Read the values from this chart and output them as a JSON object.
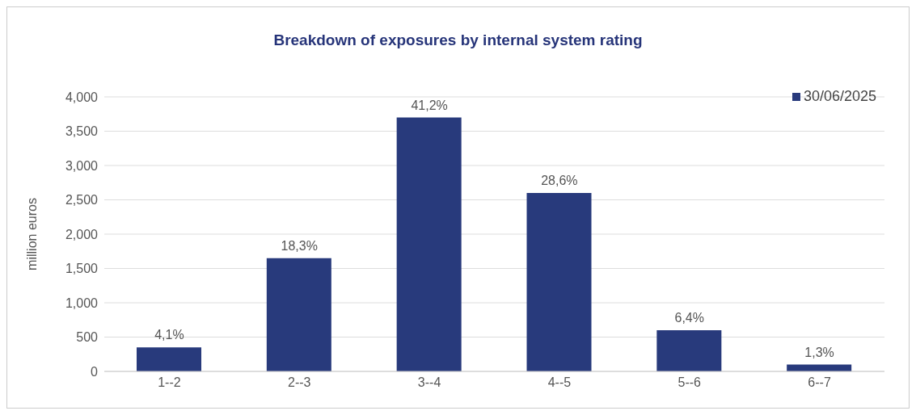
{
  "chart_data": {
    "type": "bar",
    "title": "Breakdown of exposures by internal system rating",
    "ylabel": "million euros",
    "categories": [
      "1--2",
      "2--3",
      "3--4",
      "4--5",
      "5--6",
      "6--7"
    ],
    "series": [
      {
        "name": "30/06/2025",
        "color": "#283a7c",
        "values": [
          350,
          1650,
          3700,
          2600,
          600,
          100
        ]
      }
    ],
    "annotations": [
      {
        "text": "4,1%",
        "x": "1--2",
        "y": 350
      },
      {
        "text": "18,3%",
        "x": "2--3",
        "y": 1650
      },
      {
        "text": "41,2%",
        "x": "3--4",
        "y": 3700
      },
      {
        "text": "28,6%",
        "x": "4--5",
        "y": 2600
      },
      {
        "text": "6,4%",
        "x": "5--6",
        "y": 600
      },
      {
        "text": "1,3%",
        "x": "6--7",
        "y": 100
      }
    ],
    "ylim": [
      0,
      4000
    ],
    "yticks": [
      0,
      500,
      {
        "value": 1000,
        "label": "1,000"
      },
      {
        "value": 1500,
        "label": "1,500"
      },
      {
        "value": 2000,
        "label": "2,000"
      },
      {
        "value": 2500,
        "label": "2,500"
      },
      {
        "value": 3000,
        "label": "3,000"
      },
      {
        "value": 3500,
        "label": "3,500"
      },
      {
        "value": 4000,
        "label": "4,000"
      }
    ],
    "grid": "y",
    "legend": "top right"
  }
}
